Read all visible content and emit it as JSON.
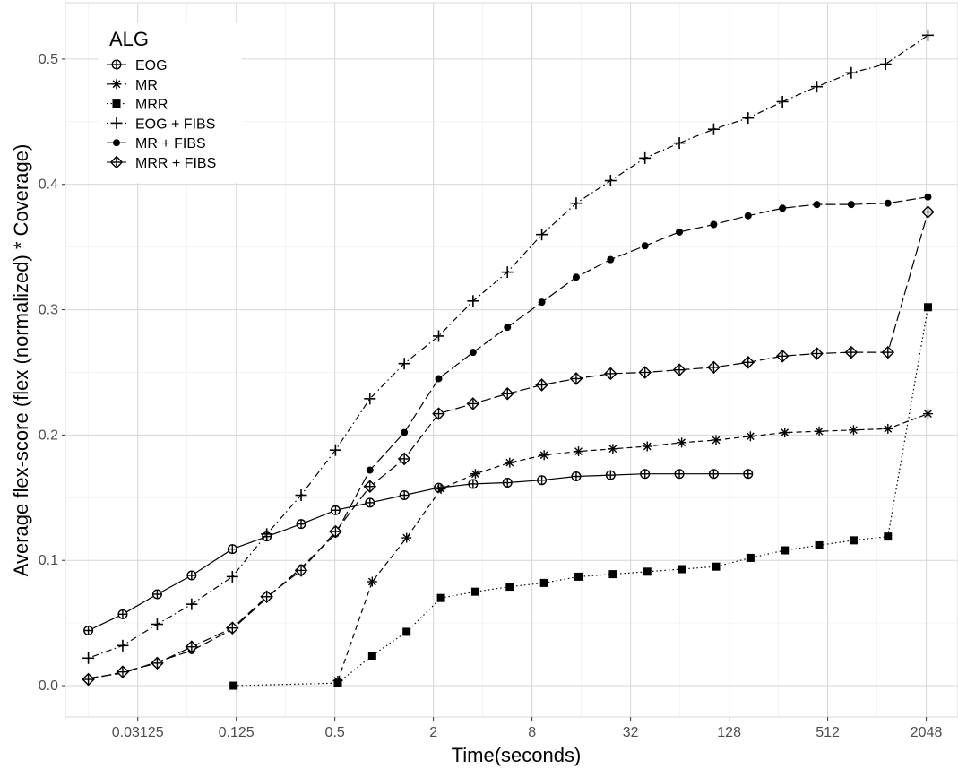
{
  "chart_data": {
    "type": "line",
    "title": "",
    "xlabel": "Time(seconds)",
    "ylabel": "Average flex-score (flex (normalized) * Coverage)",
    "x_scale": "log2",
    "x_ticks": [
      0.03125,
      0.125,
      0.5,
      2,
      8,
      32,
      128,
      512,
      2048
    ],
    "x_tick_labels": [
      "0.03125",
      "0.125",
      "0.5",
      "2",
      "8",
      "32",
      "128",
      "512",
      "2048"
    ],
    "xlim": [
      0.0113,
      3200
    ],
    "y_ticks": [
      0.0,
      0.1,
      0.2,
      0.3,
      0.4,
      0.5
    ],
    "y_tick_labels": [
      "0.0",
      "0.1",
      "0.2",
      "0.3",
      "0.4",
      "0.5"
    ],
    "ylim": [
      -0.025,
      0.545
    ],
    "grid": true,
    "legend": {
      "title": "ALG",
      "position": "top-left"
    },
    "series": [
      {
        "name": "EOG",
        "marker": "circle-plus",
        "dash": "solid",
        "x": [
          0.0156,
          0.0253,
          0.0411,
          0.0667,
          0.1183,
          0.1918,
          0.3111,
          0.5046,
          0.8184,
          1.3273,
          2.1527,
          3.4913,
          5.6624,
          9.1835,
          14.8939,
          24.1551,
          39.1752,
          63.535,
          103.042,
          167.115
        ],
        "y": [
          0.044,
          0.057,
          0.073,
          0.088,
          0.109,
          0.119,
          0.129,
          0.14,
          0.146,
          0.152,
          0.158,
          0.161,
          0.162,
          0.164,
          0.167,
          0.168,
          0.169,
          0.169,
          0.169,
          0.169
        ]
      },
      {
        "name": "MR",
        "marker": "asterisk",
        "dash": "dashed",
        "x": [
          0.5213,
          0.8454,
          1.3711,
          2.2237,
          3.6064,
          5.849,
          9.486,
          15.385,
          24.951,
          40.466,
          65.629,
          106.44,
          172.62,
          279.96,
          454.05,
          736.38,
          1194.3,
          2097.1
        ],
        "y": [
          0.004,
          0.083,
          0.118,
          0.157,
          0.169,
          0.178,
          0.184,
          0.187,
          0.189,
          0.191,
          0.194,
          0.196,
          0.199,
          0.202,
          0.203,
          0.204,
          0.205,
          0.217
        ]
      },
      {
        "name": "MRR",
        "marker": "square",
        "dash": "dotted",
        "x": [
          0.1203,
          0.5213,
          0.8454,
          1.3711,
          2.2237,
          3.6064,
          5.849,
          9.486,
          15.385,
          24.951,
          40.466,
          65.629,
          106.44,
          172.62,
          279.96,
          454.05,
          736.38,
          1194.3,
          2097.1
        ],
        "y": [
          0.0,
          0.002,
          0.024,
          0.043,
          0.07,
          0.075,
          0.079,
          0.082,
          0.087,
          0.089,
          0.091,
          0.093,
          0.095,
          0.102,
          0.108,
          0.112,
          0.116,
          0.119,
          0.302
        ]
      },
      {
        "name": "EOG + FIBS",
        "marker": "plus",
        "dash": "dotdash",
        "x": [
          0.0156,
          0.0253,
          0.0411,
          0.0667,
          0.1183,
          0.1918,
          0.3111,
          0.5046,
          0.8184,
          1.3273,
          2.1527,
          3.4913,
          5.6624,
          9.1835,
          14.8939,
          24.1551,
          39.1752,
          63.535,
          103.042,
          167.115,
          271.0,
          439.6,
          712.9,
          1156.2,
          2097.1
        ],
        "y": [
          0.022,
          0.032,
          0.049,
          0.065,
          0.087,
          0.121,
          0.152,
          0.188,
          0.229,
          0.257,
          0.279,
          0.307,
          0.33,
          0.36,
          0.385,
          0.403,
          0.421,
          0.433,
          0.444,
          0.453,
          0.466,
          0.478,
          0.489,
          0.496,
          0.519
        ]
      },
      {
        "name": "MR + FIBS",
        "marker": "dot",
        "dash": "longdash",
        "x": [
          0.0156,
          0.0253,
          0.0411,
          0.0667,
          0.1183,
          0.1918,
          0.3111,
          0.5046,
          0.8184,
          1.3273,
          2.1527,
          3.4913,
          5.6624,
          9.1835,
          14.8939,
          24.1551,
          39.1752,
          63.535,
          103.042,
          167.115,
          271.0,
          439.6,
          712.9,
          1194.3,
          2097.1
        ],
        "y": [
          0.006,
          0.01,
          0.019,
          0.028,
          0.045,
          0.07,
          0.094,
          0.121,
          0.172,
          0.202,
          0.245,
          0.266,
          0.286,
          0.306,
          0.326,
          0.34,
          0.351,
          0.362,
          0.368,
          0.375,
          0.381,
          0.384,
          0.384,
          0.385,
          0.39
        ]
      },
      {
        "name": "MRR + FIBS",
        "marker": "diamond-plus",
        "dash": "longdash",
        "x": [
          0.0156,
          0.0253,
          0.0411,
          0.0667,
          0.1183,
          0.1918,
          0.3111,
          0.5046,
          0.8184,
          1.3273,
          2.1527,
          3.4913,
          5.6624,
          9.1835,
          14.8939,
          24.1551,
          39.1752,
          63.535,
          103.042,
          167.115,
          271.0,
          439.6,
          712.9,
          1194.3,
          2097.1
        ],
        "y": [
          0.005,
          0.011,
          0.018,
          0.031,
          0.046,
          0.071,
          0.092,
          0.123,
          0.159,
          0.181,
          0.217,
          0.225,
          0.233,
          0.24,
          0.245,
          0.249,
          0.25,
          0.252,
          0.254,
          0.258,
          0.263,
          0.265,
          0.266,
          0.266,
          0.378
        ]
      }
    ]
  }
}
